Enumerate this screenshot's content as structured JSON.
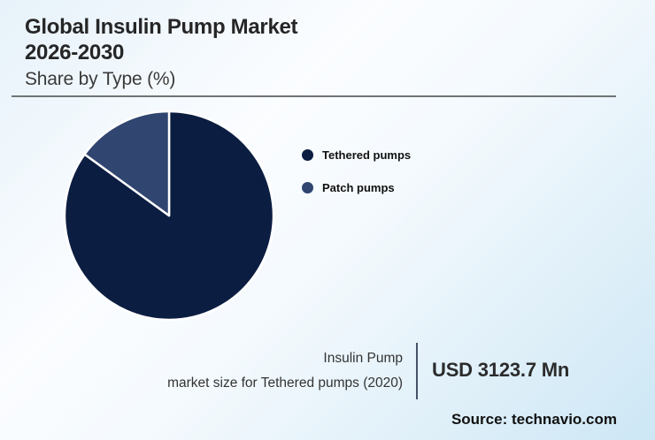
{
  "header": {
    "title_line1": "Global Insulin Pump Market",
    "title_line2": "2026-2030",
    "subtitle": "Share by Type (%)"
  },
  "chart_data": {
    "type": "pie",
    "title": "Global Insulin Pump Market 2026-2030",
    "subtitle": "Share by Type (%)",
    "unit": "%",
    "series": [
      {
        "name": "Tethered pumps",
        "value": 85,
        "color": "#0b1d41"
      },
      {
        "name": "Patch pumps",
        "value": 15,
        "color": "#304570"
      }
    ],
    "start_angle_deg": 0,
    "direction": "clockwise",
    "legend_position": "right",
    "slice_separator_color": "#ffffff"
  },
  "stat": {
    "label_line1": "Insulin Pump",
    "label_line2": "market size for Tethered pumps (2020)",
    "value": "USD 3123.7 Mn"
  },
  "source": "Source: technavio.com",
  "colors": {
    "background_blue": "#cde7f5",
    "rule_gray": "#6f7475",
    "divider_slate": "#44526a",
    "text_dark": "#262626"
  }
}
